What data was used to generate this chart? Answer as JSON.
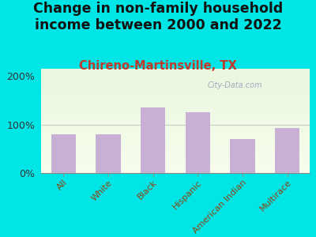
{
  "title": "Change in non-family household\nincome between 2000 and 2022",
  "subtitle": "Chireno-Martinsville, TX",
  "categories": [
    "All",
    "White",
    "Black",
    "Hispanic",
    "American Indian",
    "Multirace"
  ],
  "values": [
    80,
    80,
    135,
    125,
    70,
    93
  ],
  "bar_color": "#c8afd4",
  "background_outer": "#00e5e5",
  "title_fontsize": 12.5,
  "subtitle_fontsize": 10.5,
  "subtitle_color": "#c0392b",
  "ylabel_ticks": [
    "0%",
    "100%",
    "200%"
  ],
  "ytick_values": [
    0,
    100,
    200
  ],
  "ylim": [
    0,
    215
  ],
  "watermark": "City-Data.com",
  "watermark_color": "#9999bb",
  "xtick_color": "#8B4513"
}
